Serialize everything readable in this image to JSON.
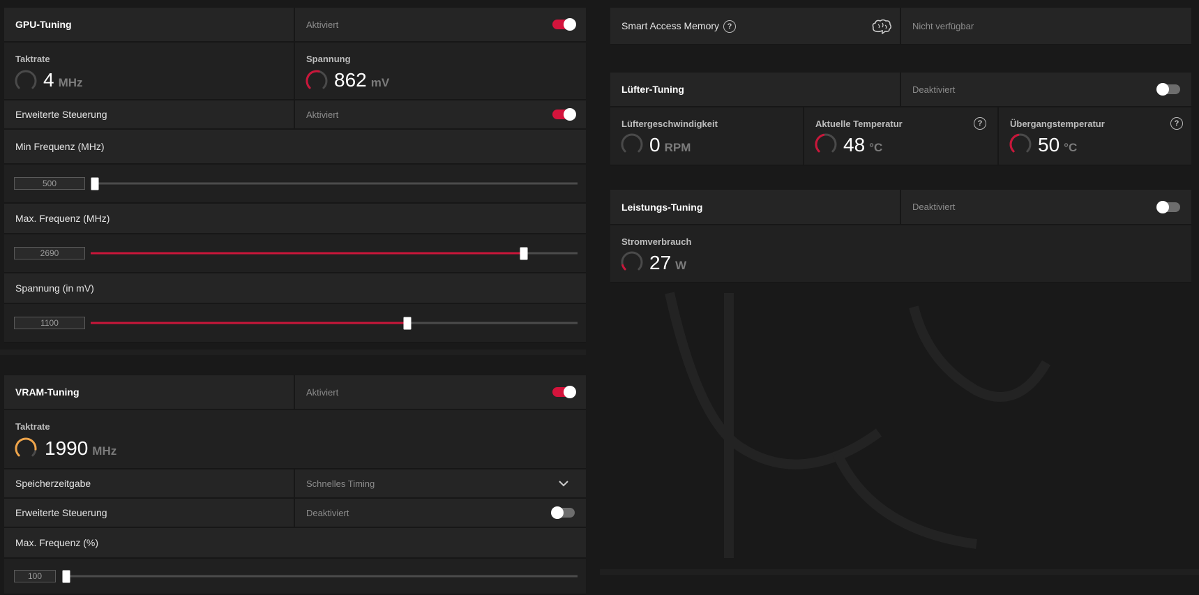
{
  "gpu_tuning": {
    "title": "GPU-Tuning",
    "status": "Aktiviert",
    "clock": {
      "label": "Taktrate",
      "value": "4",
      "unit": "MHz",
      "level": 0.0
    },
    "voltage": {
      "label": "Spannung",
      "value": "862",
      "unit": "mV",
      "level": 0.55
    },
    "advanced": {
      "label": "Erweiterte Steuerung",
      "status": "Aktiviert"
    },
    "min_freq": {
      "label": "Min Frequenz (MHz)",
      "value": "500",
      "level": 0.0
    },
    "max_freq": {
      "label": "Max. Frequenz (MHz)",
      "value": "2690",
      "level": 0.89
    },
    "voltage_slider": {
      "label": "Spannung (in mV)",
      "value": "1100",
      "level": 0.65
    }
  },
  "vram_tuning": {
    "title": "VRAM-Tuning",
    "status": "Aktiviert",
    "clock": {
      "label": "Taktrate",
      "value": "1990",
      "unit": "MHz",
      "level": 0.85
    },
    "memory_timing": {
      "label": "Speicherzeitgabe",
      "value": "Schnelles Timing"
    },
    "advanced": {
      "label": "Erweiterte Steuerung",
      "status": "Deaktiviert"
    },
    "max_freq": {
      "label": "Max. Frequenz (%)",
      "value": "100",
      "level": 0.0
    }
  },
  "smart_access_memory": {
    "label": "Smart Access Memory",
    "help": "?",
    "status": "Nicht verfügbar"
  },
  "fan_tuning": {
    "title": "Lüfter-Tuning",
    "status": "Deaktiviert",
    "fan_speed": {
      "label": "Lüftergeschwindigkeit",
      "value": "0",
      "unit": "RPM",
      "level": 0.0
    },
    "current_temp": {
      "label": "Aktuelle Temperatur",
      "value": "48",
      "unit": "°C",
      "level": 0.45
    },
    "junction_temp": {
      "label": "Übergangstemperatur",
      "value": "50",
      "unit": "°C",
      "level": 0.45
    },
    "help": "?"
  },
  "power_tuning": {
    "title": "Leistungs-Tuning",
    "status": "Deaktiviert",
    "power": {
      "label": "Stromverbrauch",
      "value": "27",
      "unit": "W",
      "level": 0.1
    }
  },
  "colors": {
    "accent_red": "#c9163a",
    "vram_gauge": "#f0a54a",
    "panel_bg": "#252525"
  }
}
